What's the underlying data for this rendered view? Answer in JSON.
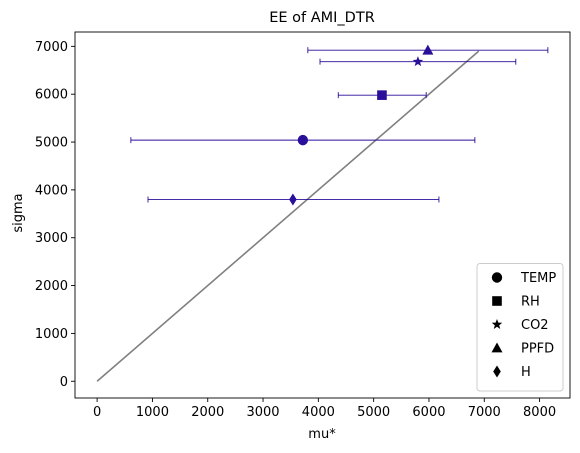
{
  "chart_data": {
    "type": "scatter",
    "title": "EE of AMI_DTR",
    "xlabel": "mu*",
    "ylabel": "sigma",
    "xlim": [
      -400,
      8550
    ],
    "ylim": [
      -350,
      7300
    ],
    "xticks": [
      0,
      1000,
      2000,
      3000,
      4000,
      5000,
      6000,
      7000,
      8000
    ],
    "yticks": [
      0,
      1000,
      2000,
      3000,
      4000,
      5000,
      6000,
      7000
    ],
    "grid": false,
    "legend_position": "lower-right",
    "marker_color": "#2a0f9a",
    "line_color": "#808080",
    "reference_line": {
      "x": [
        0,
        6900
      ],
      "y": [
        0,
        6900
      ]
    },
    "points": [
      {
        "name": "TEMP",
        "marker": "circle",
        "x": 3720,
        "y": 5040,
        "xerr_low": 610,
        "xerr_high": 6830
      },
      {
        "name": "RH",
        "marker": "square",
        "x": 5150,
        "y": 5980,
        "xerr_low": 4360,
        "xerr_high": 5950
      },
      {
        "name": "CO2",
        "marker": "star",
        "x": 5800,
        "y": 6680,
        "xerr_low": 4030,
        "xerr_high": 7570
      },
      {
        "name": "PPFD",
        "marker": "triangle",
        "x": 5980,
        "y": 6920,
        "xerr_low": 3810,
        "xerr_high": 8150
      },
      {
        "name": "H",
        "marker": "diamond",
        "x": 3540,
        "y": 3800,
        "xerr_low": 920,
        "xerr_high": 6180
      }
    ]
  }
}
